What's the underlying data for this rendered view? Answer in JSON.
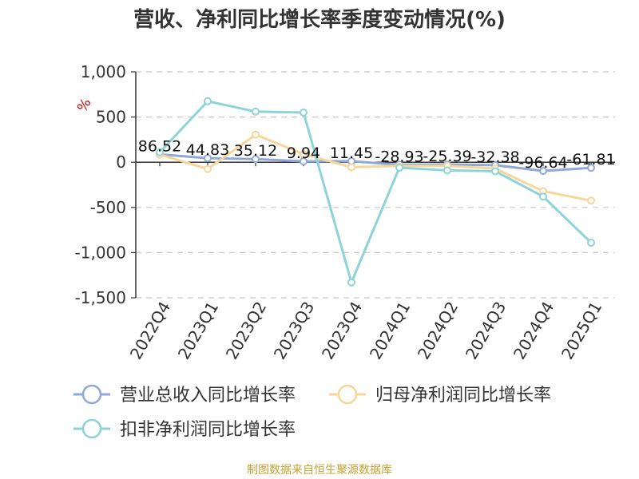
{
  "chart_data": {
    "type": "line",
    "title": "营收、净利同比增长率季度变动情况(%)",
    "ylabel": "%",
    "xlabel": "",
    "categories": [
      "2022Q4",
      "2023Q1",
      "2023Q2",
      "2023Q3",
      "2023Q4",
      "2024Q1",
      "2024Q2",
      "2024Q3",
      "2024Q4",
      "2025Q1"
    ],
    "ylim": [
      -1500,
      1000
    ],
    "yticks": [
      1000,
      500,
      0,
      -500,
      -1000,
      -1500
    ],
    "ytick_labels": [
      "1,000",
      "500",
      "0",
      "-500",
      "-1,000",
      "-1,500"
    ],
    "grid": true,
    "legend_position": "bottom",
    "series": [
      {
        "name": "营业总收入同比增长率",
        "color": "#8fa8d8",
        "values": [
          86.52,
          44.83,
          35.12,
          9.94,
          11.45,
          -28.93,
          -25.39,
          -32.38,
          -96.64,
          -61.81
        ],
        "labels": [
          "86.52",
          "44.83",
          "35.12",
          "9.94",
          "11.45",
          "-28.93",
          "-25.39",
          "-32.38",
          "-96.64",
          "-61.81"
        ]
      },
      {
        "name": "归母净利润同比增长率",
        "color": "#f6d79a",
        "values": [
          85,
          -75,
          305,
          90,
          -55,
          -40,
          -40,
          -70,
          -320,
          -425
        ]
      },
      {
        "name": "扣非净利润同比增长率",
        "color": "#8dd3d8",
        "values": [
          110,
          675,
          560,
          550,
          -1330,
          -60,
          -90,
          -100,
          -380,
          -890
        ]
      }
    ]
  },
  "source_note": "制图数据来自恒生聚源数据库"
}
